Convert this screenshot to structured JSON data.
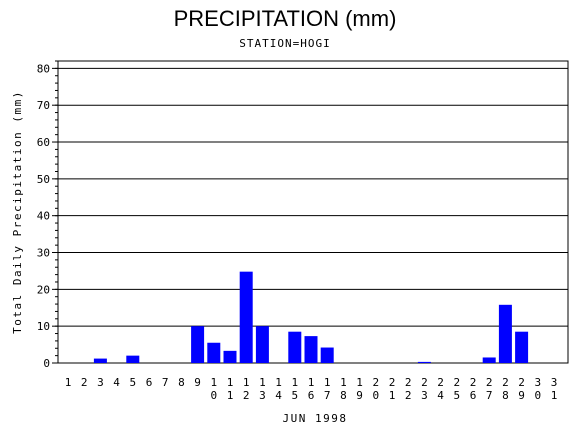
{
  "chart_data": {
    "type": "bar",
    "title": "PRECIPITATION (mm)",
    "subtitle": "STATION=HOGI",
    "xlabel": "JUN 1998",
    "ylabel": "Total Daily Precipitation (mm)",
    "ylim": [
      0,
      82
    ],
    "yticks": [
      0,
      10,
      20,
      30,
      40,
      50,
      60,
      70,
      80
    ],
    "grid": true,
    "bar_color": "#0000ff",
    "categories": [
      "1",
      "2",
      "3",
      "4",
      "5",
      "6",
      "7",
      "8",
      "9",
      "10",
      "11",
      "12",
      "13",
      "14",
      "15",
      "16",
      "17",
      "18",
      "19",
      "20",
      "21",
      "22",
      "23",
      "24",
      "25",
      "26",
      "27",
      "28",
      "29",
      "30",
      "31"
    ],
    "values": [
      0,
      0,
      1.2,
      0,
      2.0,
      0,
      0,
      0,
      10.0,
      5.5,
      3.3,
      24.8,
      10.0,
      0,
      8.5,
      7.3,
      4.2,
      0,
      0,
      0,
      0,
      0,
      0.3,
      0,
      0,
      0,
      1.5,
      15.8,
      8.5,
      0,
      0
    ]
  }
}
